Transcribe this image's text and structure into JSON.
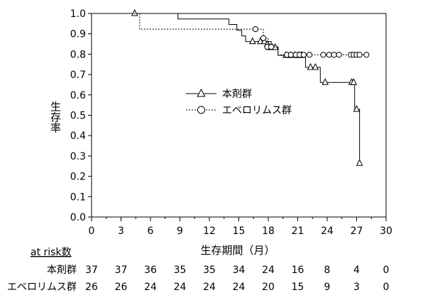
{
  "chart_data": {
    "type": "line",
    "subtype": "kaplan-meier",
    "title": "",
    "xlabel": "生存期間（月）",
    "ylabel": "生存率",
    "xlim": [
      0,
      30
    ],
    "ylim": [
      0,
      1.0
    ],
    "xticks": [
      0,
      3,
      6,
      9,
      12,
      15,
      18,
      21,
      24,
      27,
      30
    ],
    "xtick_labels": [
      "0",
      "3",
      "6",
      "9",
      "12",
      "15",
      "18",
      "21",
      "24",
      "27",
      "30"
    ],
    "yticks": [
      0,
      0.1,
      0.2,
      0.3,
      0.4,
      0.5,
      0.6,
      0.7,
      0.8,
      0.9,
      1.0
    ],
    "ytick_labels": [
      "0.0",
      "0.1",
      "0.2",
      "0.3",
      "0.4",
      "0.5",
      "0.6",
      "0.7",
      "0.8",
      "0.9",
      "1.0"
    ],
    "grid": false,
    "legend_position": "center",
    "series": [
      {
        "name": "本剤群",
        "line_style": "solid",
        "marker": "triangle",
        "steps": [
          [
            0,
            1.0
          ],
          [
            8.8,
            0.973
          ],
          [
            14,
            0.946
          ],
          [
            14.8,
            0.918
          ],
          [
            15.3,
            0.89
          ],
          [
            15.7,
            0.862
          ],
          [
            18.3,
            0.833
          ],
          [
            19,
            0.794
          ],
          [
            21.8,
            0.735
          ],
          [
            23.3,
            0.661
          ],
          [
            26.8,
            0.529
          ],
          [
            27.3,
            0.264
          ]
        ],
        "censored": [
          [
            4.4,
            1.0
          ],
          [
            16.4,
            0.862
          ],
          [
            17.2,
            0.862
          ],
          [
            17.6,
            0.862
          ],
          [
            17.9,
            0.848
          ],
          [
            18.1,
            0.833
          ],
          [
            18.4,
            0.833
          ],
          [
            18.7,
            0.833
          ],
          [
            19.8,
            0.794
          ],
          [
            20.3,
            0.794
          ],
          [
            20.7,
            0.794
          ],
          [
            21.1,
            0.794
          ],
          [
            21.4,
            0.794
          ],
          [
            22.3,
            0.735
          ],
          [
            22.8,
            0.735
          ],
          [
            23.8,
            0.661
          ],
          [
            26.5,
            0.661
          ],
          [
            26.7,
            0.661
          ],
          [
            27.0,
            0.529
          ],
          [
            27.3,
            0.264
          ]
        ]
      },
      {
        "name": "エベロリムス群",
        "line_style": "dotted",
        "marker": "circle",
        "steps": [
          [
            0,
            1.0
          ],
          [
            4.9,
            0.923
          ],
          [
            17.5,
            0.879
          ],
          [
            18,
            0.836
          ],
          [
            19,
            0.797
          ]
        ],
        "censored": [
          [
            16.7,
            0.923
          ],
          [
            17.5,
            0.879
          ],
          [
            17.9,
            0.836
          ],
          [
            18.3,
            0.836
          ],
          [
            19.9,
            0.797
          ],
          [
            20.3,
            0.797
          ],
          [
            20.8,
            0.797
          ],
          [
            21.2,
            0.797
          ],
          [
            21.6,
            0.797
          ],
          [
            22.2,
            0.797
          ],
          [
            23.6,
            0.797
          ],
          [
            24.2,
            0.797
          ],
          [
            24.7,
            0.797
          ],
          [
            25.2,
            0.797
          ],
          [
            26.4,
            0.797
          ],
          [
            26.7,
            0.797
          ],
          [
            27.0,
            0.797
          ],
          [
            27.3,
            0.797
          ],
          [
            28.0,
            0.797
          ]
        ]
      }
    ],
    "at_risk": {
      "header": "at risk数",
      "rows": [
        {
          "label": "本剤群",
          "values": [
            "37",
            "37",
            "36",
            "35",
            "35",
            "34",
            "24",
            "16",
            "8",
            "4",
            "0"
          ]
        },
        {
          "label": "エベロリムス群",
          "values": [
            "26",
            "26",
            "24",
            "24",
            "24",
            "24",
            "20",
            "15",
            "9",
            "3",
            "0"
          ]
        }
      ]
    }
  },
  "colors": {
    "axis": "#000000",
    "series_line": "#000000",
    "marker_fill": "#ffffff",
    "background": "#ffffff"
  }
}
